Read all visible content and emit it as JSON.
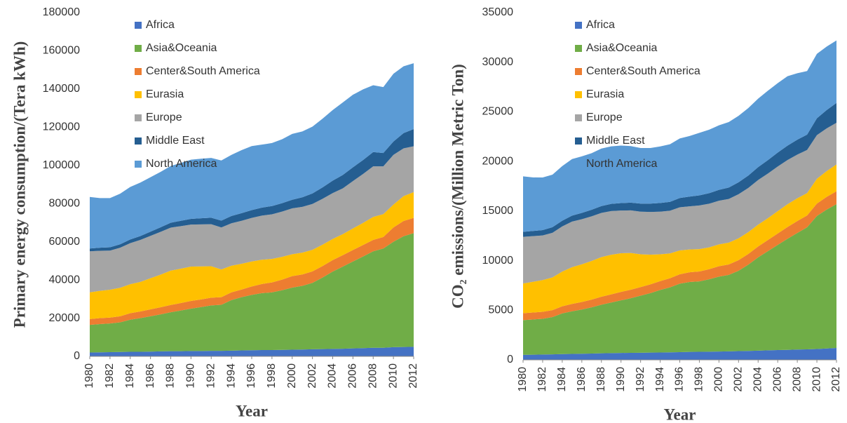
{
  "chart_data": [
    {
      "type": "stacked_area",
      "ylabel": "Primary energy consumption/(Tera kWh)",
      "xlabel": "Year",
      "x": [
        1980,
        1981,
        1982,
        1983,
        1984,
        1985,
        1986,
        1987,
        1988,
        1989,
        1990,
        1991,
        1992,
        1993,
        1994,
        1995,
        1996,
        1997,
        1998,
        1999,
        2000,
        2001,
        2002,
        2003,
        2004,
        2005,
        2006,
        2007,
        2008,
        2009,
        2010,
        2011,
        2012
      ],
      "xlim": [
        1980,
        2012
      ],
      "xticks": [
        1980,
        1982,
        1984,
        1986,
        1988,
        1990,
        1992,
        1994,
        1996,
        1998,
        2000,
        2002,
        2004,
        2006,
        2008,
        2010,
        2012
      ],
      "ylim": [
        0,
        180000
      ],
      "yticks": [
        0,
        20000,
        40000,
        60000,
        80000,
        100000,
        120000,
        140000,
        160000,
        180000
      ],
      "grid": false,
      "legend": "upper left",
      "series": [
        {
          "name": "Africa",
          "color": "#4472c4",
          "values": [
            2000,
            2100,
            2200,
            2300,
            2400,
            2400,
            2500,
            2600,
            2700,
            2700,
            2800,
            2800,
            2900,
            2900,
            3000,
            3100,
            3200,
            3300,
            3300,
            3400,
            3500,
            3600,
            3700,
            3800,
            3900,
            4000,
            4200,
            4300,
            4500,
            4500,
            4800,
            4900,
            5000
          ]
        },
        {
          "name": "Asia&Oceania",
          "color": "#70ad47",
          "values": [
            14500,
            14800,
            15000,
            15500,
            16800,
            17600,
            18500,
            19400,
            20400,
            21300,
            22200,
            23000,
            23800,
            24100,
            26500,
            27900,
            29000,
            29800,
            30200,
            31200,
            32500,
            33300,
            34800,
            37500,
            40500,
            43000,
            45500,
            48000,
            50500,
            52000,
            55200,
            58000,
            59500
          ]
        },
        {
          "name": "Center&South America",
          "color": "#ed7d31",
          "values": [
            3000,
            3100,
            3100,
            3200,
            3400,
            3500,
            3600,
            3700,
            3800,
            3900,
            4000,
            4000,
            4000,
            4000,
            4000,
            4000,
            4400,
            4800,
            5200,
            5600,
            6000,
            6000,
            6000,
            6000,
            6000,
            6000,
            6000,
            6000,
            6000,
            6000,
            7500,
            8000,
            8000
          ]
        },
        {
          "name": "Eurasia",
          "color": "#ffc000",
          "values": [
            14000,
            14300,
            14600,
            14900,
            15200,
            15500,
            16300,
            17100,
            18000,
            18000,
            18000,
            17300,
            16500,
            14500,
            14000,
            13500,
            13100,
            12700,
            12300,
            11900,
            11500,
            11400,
            11300,
            11200,
            11100,
            11000,
            11300,
            11600,
            12000,
            12000,
            12000,
            13000,
            13500
          ]
        },
        {
          "name": "Europe",
          "color": "#a5a5a5",
          "values": [
            21500,
            21000,
            20500,
            21000,
            21500,
            22000,
            22200,
            22400,
            22500,
            22300,
            22000,
            22000,
            22000,
            22000,
            22200,
            22500,
            22800,
            23100,
            23400,
            23700,
            24000,
            24000,
            24000,
            24000,
            24000,
            24000,
            24800,
            25600,
            26500,
            25000,
            26000,
            25000,
            24000
          ]
        },
        {
          "name": "Middle East",
          "color": "#255e91",
          "values": [
            1500,
            1600,
            1700,
            1800,
            1900,
            2000,
            2200,
            2400,
            2600,
            2800,
            3000,
            3200,
            3400,
            3600,
            3800,
            4000,
            4100,
            4200,
            4300,
            4400,
            4500,
            5000,
            5500,
            6000,
            6500,
            7000,
            7200,
            7300,
            7500,
            7000,
            7000,
            8000,
            9000
          ]
        },
        {
          "name": "North America",
          "color": "#5b9bd5",
          "values": [
            27000,
            26000,
            25800,
            26500,
            27500,
            28000,
            28500,
            29000,
            29700,
            30300,
            31000,
            31200,
            31300,
            31500,
            32000,
            33000,
            33500,
            33000,
            33000,
            33500,
            34500,
            34500,
            35000,
            36000,
            37000,
            38000,
            38000,
            37000,
            35000,
            34500,
            35500,
            35000,
            34500
          ]
        }
      ]
    },
    {
      "type": "stacked_area",
      "ylabel": "CO₂ emissions/(Million Metric Ton)",
      "xlabel": "Year",
      "x": [
        1980,
        1981,
        1982,
        1983,
        1984,
        1985,
        1986,
        1987,
        1988,
        1989,
        1990,
        1991,
        1992,
        1993,
        1994,
        1995,
        1996,
        1997,
        1998,
        1999,
        2000,
        2001,
        2002,
        2003,
        2004,
        2005,
        2006,
        2007,
        2008,
        2009,
        2010,
        2011,
        2012
      ],
      "xlim": [
        1980,
        2012
      ],
      "xticks": [
        1980,
        1982,
        1984,
        1986,
        1988,
        1990,
        1992,
        1994,
        1996,
        1998,
        2000,
        2002,
        2004,
        2006,
        2008,
        2010,
        2012
      ],
      "ylim": [
        0,
        35000
      ],
      "yticks": [
        0,
        5000,
        10000,
        15000,
        20000,
        25000,
        30000,
        35000
      ],
      "grid": false,
      "legend": "upper left",
      "series": [
        {
          "name": "Africa",
          "color": "#4472c4",
          "values": [
            500,
            520,
            540,
            560,
            580,
            600,
            620,
            640,
            660,
            680,
            700,
            710,
            720,
            730,
            740,
            760,
            780,
            800,
            810,
            820,
            840,
            860,
            880,
            900,
            930,
            960,
            990,
            1010,
            1040,
            1060,
            1100,
            1150,
            1200
          ]
        },
        {
          "name": "Asia&Oceania",
          "color": "#70ad47",
          "values": [
            3500,
            3550,
            3600,
            3750,
            4100,
            4300,
            4450,
            4650,
            4900,
            5100,
            5300,
            5500,
            5750,
            6000,
            6300,
            6550,
            6900,
            7050,
            7100,
            7300,
            7550,
            7700,
            8100,
            8700,
            9400,
            10000,
            10600,
            11200,
            11750,
            12300,
            13400,
            14000,
            14500
          ]
        },
        {
          "name": "Center&South America",
          "color": "#ed7d31",
          "values": [
            700,
            700,
            700,
            700,
            720,
            740,
            760,
            780,
            800,
            820,
            850,
            860,
            870,
            880,
            900,
            920,
            950,
            980,
            1000,
            1020,
            1050,
            1060,
            1070,
            1080,
            1100,
            1120,
            1150,
            1180,
            1200,
            1200,
            1250,
            1280,
            1300
          ]
        },
        {
          "name": "Eurasia",
          "color": "#ffc000",
          "values": [
            3000,
            3100,
            3200,
            3300,
            3500,
            3700,
            3800,
            3900,
            4000,
            4000,
            3900,
            3700,
            3300,
            3000,
            2700,
            2500,
            2400,
            2300,
            2250,
            2200,
            2200,
            2200,
            2200,
            2200,
            2200,
            2200,
            2250,
            2300,
            2300,
            2250,
            2500,
            2600,
            2700
          ]
        },
        {
          "name": "Europe",
          "color": "#a5a5a5",
          "values": [
            4700,
            4600,
            4500,
            4500,
            4550,
            4600,
            4550,
            4500,
            4450,
            4400,
            4300,
            4300,
            4300,
            4300,
            4300,
            4300,
            4350,
            4350,
            4400,
            4400,
            4400,
            4400,
            4450,
            4450,
            4500,
            4500,
            4500,
            4450,
            4400,
            4350,
            4400,
            4300,
            4200
          ]
        },
        {
          "name": "Middle East",
          "color": "#255e91",
          "values": [
            500,
            520,
            540,
            560,
            580,
            600,
            630,
            660,
            690,
            720,
            750,
            780,
            810,
            840,
            870,
            900,
            940,
            980,
            1020,
            1060,
            1100,
            1150,
            1200,
            1250,
            1300,
            1350,
            1400,
            1450,
            1500,
            1550,
            1700,
            1850,
            2000
          ]
        },
        {
          "name": "North America",
          "color": "#5b9bd5",
          "values": [
            5600,
            5400,
            5300,
            5300,
            5500,
            5700,
            5700,
            5700,
            5800,
            5800,
            5800,
            5700,
            5600,
            5600,
            5700,
            5800,
            6000,
            6100,
            6300,
            6400,
            6500,
            6600,
            6700,
            6800,
            6900,
            7000,
            7000,
            7000,
            6700,
            6400,
            6500,
            6400,
            6300
          ]
        }
      ]
    }
  ]
}
